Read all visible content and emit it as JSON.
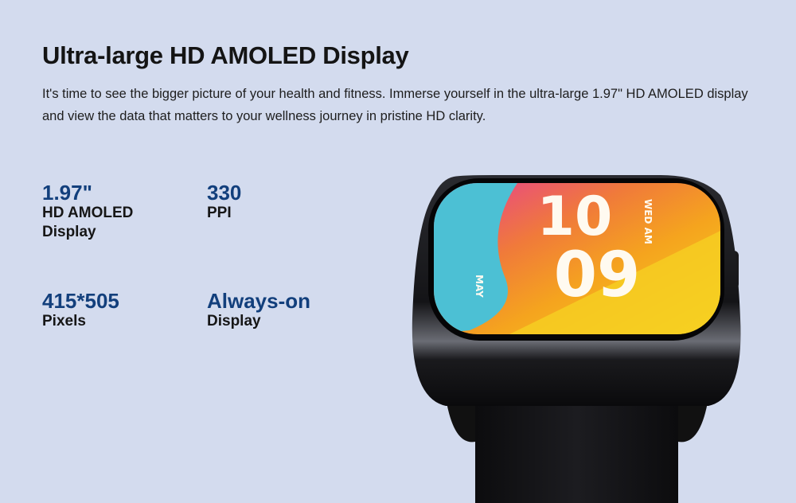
{
  "section": {
    "title": "Ultra-large HD AMOLED Display",
    "description": "It's time to see the bigger picture of your health and fitness. Immerse yourself in the ultra-large 1.97\" HD AMOLED display and view the data that matters to your wellness journey in pristine HD clarity."
  },
  "specs": [
    {
      "value": "1.97\"",
      "label_line1": "HD AMOLED",
      "label_line2": "Display"
    },
    {
      "value": "330",
      "label_line1": "PPI",
      "label_line2": ""
    },
    {
      "value": "415*505",
      "label_line1": "Pixels",
      "label_line2": ""
    },
    {
      "value": "Always-on",
      "label_line1": "Display",
      "label_line2": ""
    }
  ],
  "watch_face": {
    "hour": "10",
    "minute": "09",
    "day_ampm": "WED AM",
    "month": "MAY"
  },
  "colors": {
    "background": "#d3dbee",
    "accent_value": "#123f7c"
  }
}
